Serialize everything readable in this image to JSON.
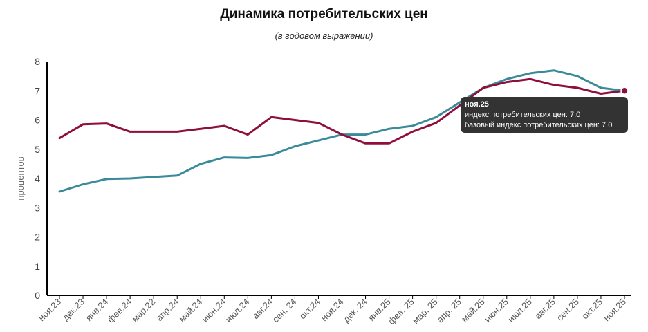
{
  "header": {
    "title": "Динамика потребительских цен",
    "subtitle": "(в годовом выражении)"
  },
  "colors": {
    "cpi": "#3a8a9a",
    "core": "#8e0e3c",
    "tooltip_bg": "#333333"
  },
  "chart_data": {
    "type": "line",
    "title": "Динамика потребительских цен",
    "subtitle": "(в годовом выражении)",
    "ylabel": "процентов",
    "xlabel": "",
    "ylim": [
      0,
      8
    ],
    "yticks": [
      0,
      1,
      2,
      3,
      4,
      5,
      6,
      7,
      8
    ],
    "grid": false,
    "categories": [
      "ноя.23",
      "дек.23",
      "янв.24",
      "фев.24",
      "мар.22",
      "апр.24",
      "май.24",
      "июн.24",
      "июл.24",
      "авг.24",
      "сен. 24",
      "окт.24",
      "ноя.24",
      "дек. 24",
      "янв.25",
      "фев. 25",
      "мар. 25",
      "апр. 25",
      "май.25",
      "июн.25",
      "июл.25",
      "авг.25",
      "сен.25",
      "окт.25",
      "ноя.25"
    ],
    "series": [
      {
        "name": "индекс потребительских цен",
        "color": "#3a8a9a",
        "values": [
          3.55,
          3.8,
          3.98,
          4.0,
          4.05,
          4.1,
          4.5,
          4.72,
          4.7,
          4.8,
          5.1,
          5.3,
          5.5,
          5.5,
          5.7,
          5.8,
          6.1,
          6.6,
          7.1,
          7.4,
          7.6,
          7.7,
          7.5,
          7.1,
          7.0
        ]
      },
      {
        "name": "базовый индекс потребительских цен",
        "color": "#8e0e3c",
        "values": [
          5.38,
          5.85,
          5.88,
          5.6,
          5.6,
          5.6,
          5.7,
          5.8,
          5.5,
          6.1,
          6.0,
          5.9,
          5.5,
          5.2,
          5.2,
          5.6,
          5.9,
          6.5,
          7.1,
          7.3,
          7.4,
          7.2,
          7.1,
          6.9,
          7.0
        ]
      }
    ]
  },
  "tooltip": {
    "period": "ноя.25",
    "line1": "индекс потребительских цен: 7.0",
    "line2": "базовый индекс потребительских цен: 7.0"
  }
}
